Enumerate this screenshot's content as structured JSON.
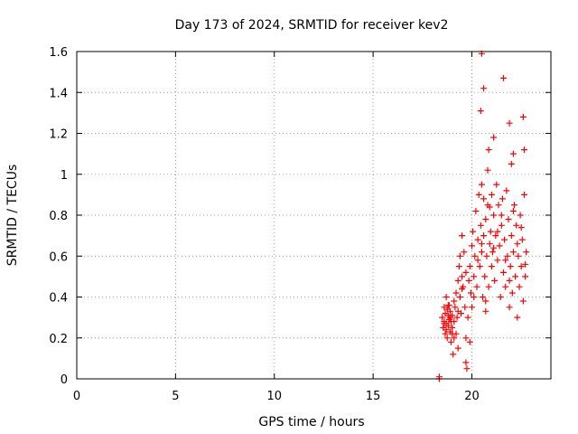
{
  "chart_data": {
    "type": "scatter",
    "title": "Day 173 of 2024, SRMTID for receiver kev2",
    "xlabel": "GPS time / hours",
    "ylabel": "SRMTID / TECUs",
    "xlim": [
      0,
      24
    ],
    "ylim": [
      0,
      1.6
    ],
    "xticks": [
      0,
      5,
      10,
      15,
      20
    ],
    "yticks": [
      0,
      0.2,
      0.4,
      0.6,
      0.8,
      1,
      1.2,
      1.4,
      1.6
    ],
    "ytick_labels": [
      "0",
      "0.2",
      "0.4",
      "0.6",
      "0.8",
      "1",
      "1.2",
      "1.4",
      "1.6"
    ],
    "grid": true,
    "marker": "+",
    "color": "#ff0000",
    "series": [
      {
        "name": "kev2",
        "x": [
          18.35,
          18.35,
          18.5,
          18.55,
          18.6,
          18.6,
          18.65,
          18.65,
          18.7,
          18.7,
          18.75,
          18.75,
          18.8,
          18.8,
          18.85,
          18.85,
          18.9,
          18.9,
          18.95,
          18.95,
          19.0,
          19.0,
          19.05,
          19.1,
          19.1,
          19.15,
          19.2,
          19.2,
          19.25,
          19.3,
          19.3,
          19.35,
          19.4,
          19.4,
          19.45,
          19.5,
          19.5,
          19.55,
          19.6,
          19.65,
          19.7,
          19.7,
          19.75,
          19.8,
          19.85,
          19.9,
          19.95,
          20.0,
          20.0,
          20.05,
          20.1,
          20.15,
          20.2,
          20.25,
          20.3,
          20.35,
          20.4,
          20.45,
          20.5,
          20.5,
          20.55,
          20.6,
          20.6,
          20.65,
          20.7,
          20.7,
          20.75,
          20.8,
          20.8,
          20.85,
          20.9,
          20.95,
          21.0,
          21.0,
          21.05,
          21.1,
          21.15,
          21.2,
          21.25,
          21.3,
          21.35,
          21.4,
          21.45,
          21.5,
          21.55,
          21.6,
          21.65,
          21.7,
          21.75,
          21.8,
          21.85,
          21.9,
          21.95,
          22.0,
          22.05,
          22.1,
          22.15,
          22.2,
          22.25,
          22.3,
          22.35,
          22.4,
          22.45,
          22.5,
          22.55,
          22.6,
          22.65,
          22.7,
          22.75,
          18.6,
          18.7,
          18.8,
          18.9,
          19.0,
          19.1,
          19.3,
          19.5,
          19.7,
          19.9,
          20.1,
          20.3,
          20.5,
          20.7,
          20.9,
          21.1,
          21.3,
          21.5,
          21.7,
          21.9,
          22.1,
          22.3,
          22.5,
          22.7,
          20.45,
          20.5,
          20.6,
          20.85,
          21.1,
          21.6,
          21.9,
          22.0,
          22.1,
          22.6,
          22.65
        ],
        "y": [
          0.0,
          0.01,
          0.3,
          0.25,
          0.35,
          0.28,
          0.22,
          0.32,
          0.4,
          0.27,
          0.2,
          0.34,
          0.31,
          0.26,
          0.29,
          0.36,
          0.23,
          0.33,
          0.18,
          0.28,
          0.25,
          0.31,
          0.12,
          0.2,
          0.38,
          0.35,
          0.22,
          0.42,
          0.3,
          0.48,
          0.15,
          0.55,
          0.4,
          0.6,
          0.32,
          0.5,
          0.7,
          0.45,
          0.62,
          0.35,
          0.2,
          0.08,
          0.05,
          0.3,
          0.48,
          0.55,
          0.42,
          0.65,
          0.35,
          0.72,
          0.5,
          0.6,
          0.82,
          0.45,
          0.68,
          0.9,
          0.55,
          0.75,
          0.62,
          0.95,
          0.4,
          0.7,
          0.88,
          0.5,
          0.33,
          0.78,
          0.6,
          0.85,
          1.02,
          0.45,
          0.66,
          0.72,
          0.9,
          0.55,
          0.62,
          0.8,
          0.48,
          0.7,
          0.95,
          0.58,
          0.85,
          0.65,
          0.4,
          0.75,
          0.88,
          0.52,
          0.68,
          0.45,
          0.92,
          0.6,
          0.78,
          0.35,
          0.55,
          0.7,
          0.42,
          0.62,
          0.85,
          0.5,
          0.75,
          0.3,
          0.6,
          0.45,
          0.8,
          0.55,
          0.68,
          0.38,
          0.9,
          0.5,
          0.62,
          0.27,
          0.24,
          0.36,
          0.3,
          0.22,
          0.28,
          0.33,
          0.44,
          0.52,
          0.18,
          0.4,
          0.58,
          0.66,
          0.38,
          0.84,
          0.64,
          0.72,
          0.8,
          0.58,
          0.48,
          0.82,
          0.66,
          0.74,
          0.56,
          1.31,
          1.59,
          1.42,
          1.12,
          1.18,
          1.47,
          1.25,
          1.05,
          1.1,
          1.28,
          1.12
        ]
      }
    ]
  }
}
